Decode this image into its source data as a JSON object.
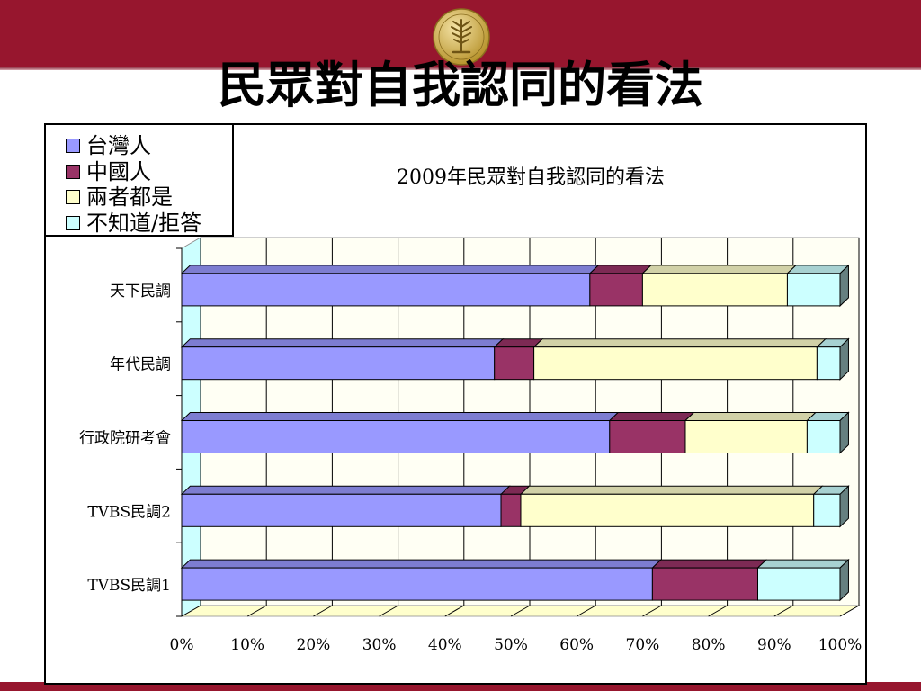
{
  "slide": {
    "title": "民眾對自我認同的看法"
  },
  "colors": {
    "banner": "#97162e",
    "seal": "#c8a845"
  },
  "icons": {
    "seal": "wheat-seal-emblem"
  },
  "chart_data": {
    "type": "bar",
    "orientation": "horizontal",
    "stacked": "percent",
    "three_d": true,
    "title": "2009年民眾對自我認同的看法",
    "categories": [
      "天下民調",
      "年代民調",
      "行政院研考會",
      "TVBS民調2",
      "TVBS民調1"
    ],
    "series": [
      {
        "name": "台灣人",
        "color": "#9999ff",
        "values": [
          62,
          47.5,
          65,
          48.5,
          71.5
        ]
      },
      {
        "name": "中國人",
        "color": "#993366",
        "values": [
          8,
          6,
          11.5,
          3,
          16
        ]
      },
      {
        "name": "兩者都是",
        "color": "#ffffcc",
        "values": [
          22,
          43,
          18.5,
          44.5,
          0
        ]
      },
      {
        "name": "不知道/拒答",
        "color": "#ccffff",
        "values": [
          8,
          3.5,
          5,
          4,
          12.5
        ]
      }
    ],
    "xlim": [
      0,
      100
    ],
    "xticks": [
      "0%",
      "10%",
      "20%",
      "30%",
      "40%",
      "50%",
      "60%",
      "70%",
      "80%",
      "90%",
      "100%"
    ],
    "grid": true,
    "legend_position": "top-left"
  }
}
